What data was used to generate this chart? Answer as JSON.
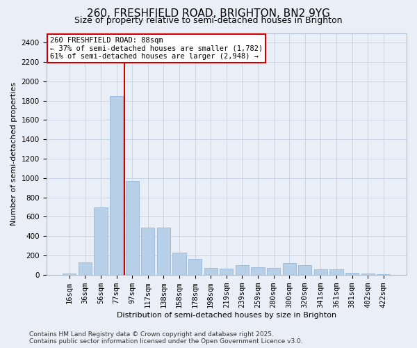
{
  "title1": "260, FRESHFIELD ROAD, BRIGHTON, BN2 9YG",
  "title2": "Size of property relative to semi-detached houses in Brighton",
  "xlabel": "Distribution of semi-detached houses by size in Brighton",
  "ylabel": "Number of semi-detached properties",
  "categories": [
    "16sqm",
    "36sqm",
    "56sqm",
    "77sqm",
    "97sqm",
    "117sqm",
    "138sqm",
    "158sqm",
    "178sqm",
    "198sqm",
    "219sqm",
    "239sqm",
    "259sqm",
    "280sqm",
    "300sqm",
    "320sqm",
    "341sqm",
    "361sqm",
    "381sqm",
    "402sqm",
    "422sqm"
  ],
  "values": [
    10,
    130,
    700,
    1850,
    970,
    490,
    490,
    230,
    160,
    70,
    60,
    100,
    80,
    70,
    120,
    100,
    55,
    55,
    20,
    10,
    5
  ],
  "bar_color": "#b8cfe8",
  "bar_edge_color": "#8aafd4",
  "grid_color": "#c8d4e4",
  "background_color": "#eaeff7",
  "red_line_x": 3.5,
  "annotation_title": "260 FRESHFIELD ROAD: 88sqm",
  "annotation_line1": "← 37% of semi-detached houses are smaller (1,782)",
  "annotation_line2": "61% of semi-detached houses are larger (2,948) →",
  "red_line_color": "#cc0000",
  "annotation_box_facecolor": "#ffffff",
  "annotation_box_edgecolor": "#cc0000",
  "ylim_max": 2500,
  "ytick_max": 2400,
  "ytick_step": 200,
  "footer_line1": "Contains HM Land Registry data © Crown copyright and database right 2025.",
  "footer_line2": "Contains public sector information licensed under the Open Government Licence v3.0.",
  "title1_fontsize": 11,
  "title2_fontsize": 9,
  "axis_label_fontsize": 8,
  "tick_fontsize": 7.5,
  "annotation_fontsize": 7.5,
  "footer_fontsize": 6.5
}
